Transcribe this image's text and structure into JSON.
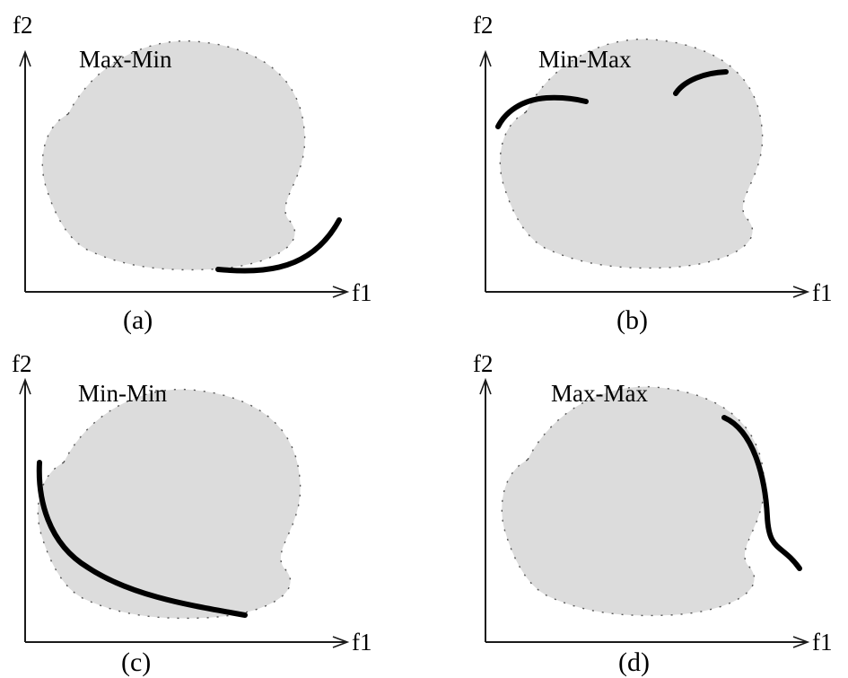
{
  "panels": [
    {
      "id": "a",
      "title": "Max-Min",
      "caption": "(a)",
      "y_axis_label": "f2",
      "x_axis_label": "f1"
    },
    {
      "id": "b",
      "title": "Min-Max",
      "caption": "(b)",
      "y_axis_label": "f2",
      "x_axis_label": "f1"
    },
    {
      "id": "c",
      "title": "Min-Min",
      "caption": "(c)",
      "y_axis_label": "f2",
      "x_axis_label": "f1"
    },
    {
      "id": "d",
      "title": "Max-Max",
      "caption": "(d)",
      "y_axis_label": "f2",
      "x_axis_label": "f1"
    }
  ],
  "colors": {
    "region_fill": "#dcdcdc",
    "front_stroke": "#000000",
    "axis_stroke": "#1a1a1a"
  }
}
